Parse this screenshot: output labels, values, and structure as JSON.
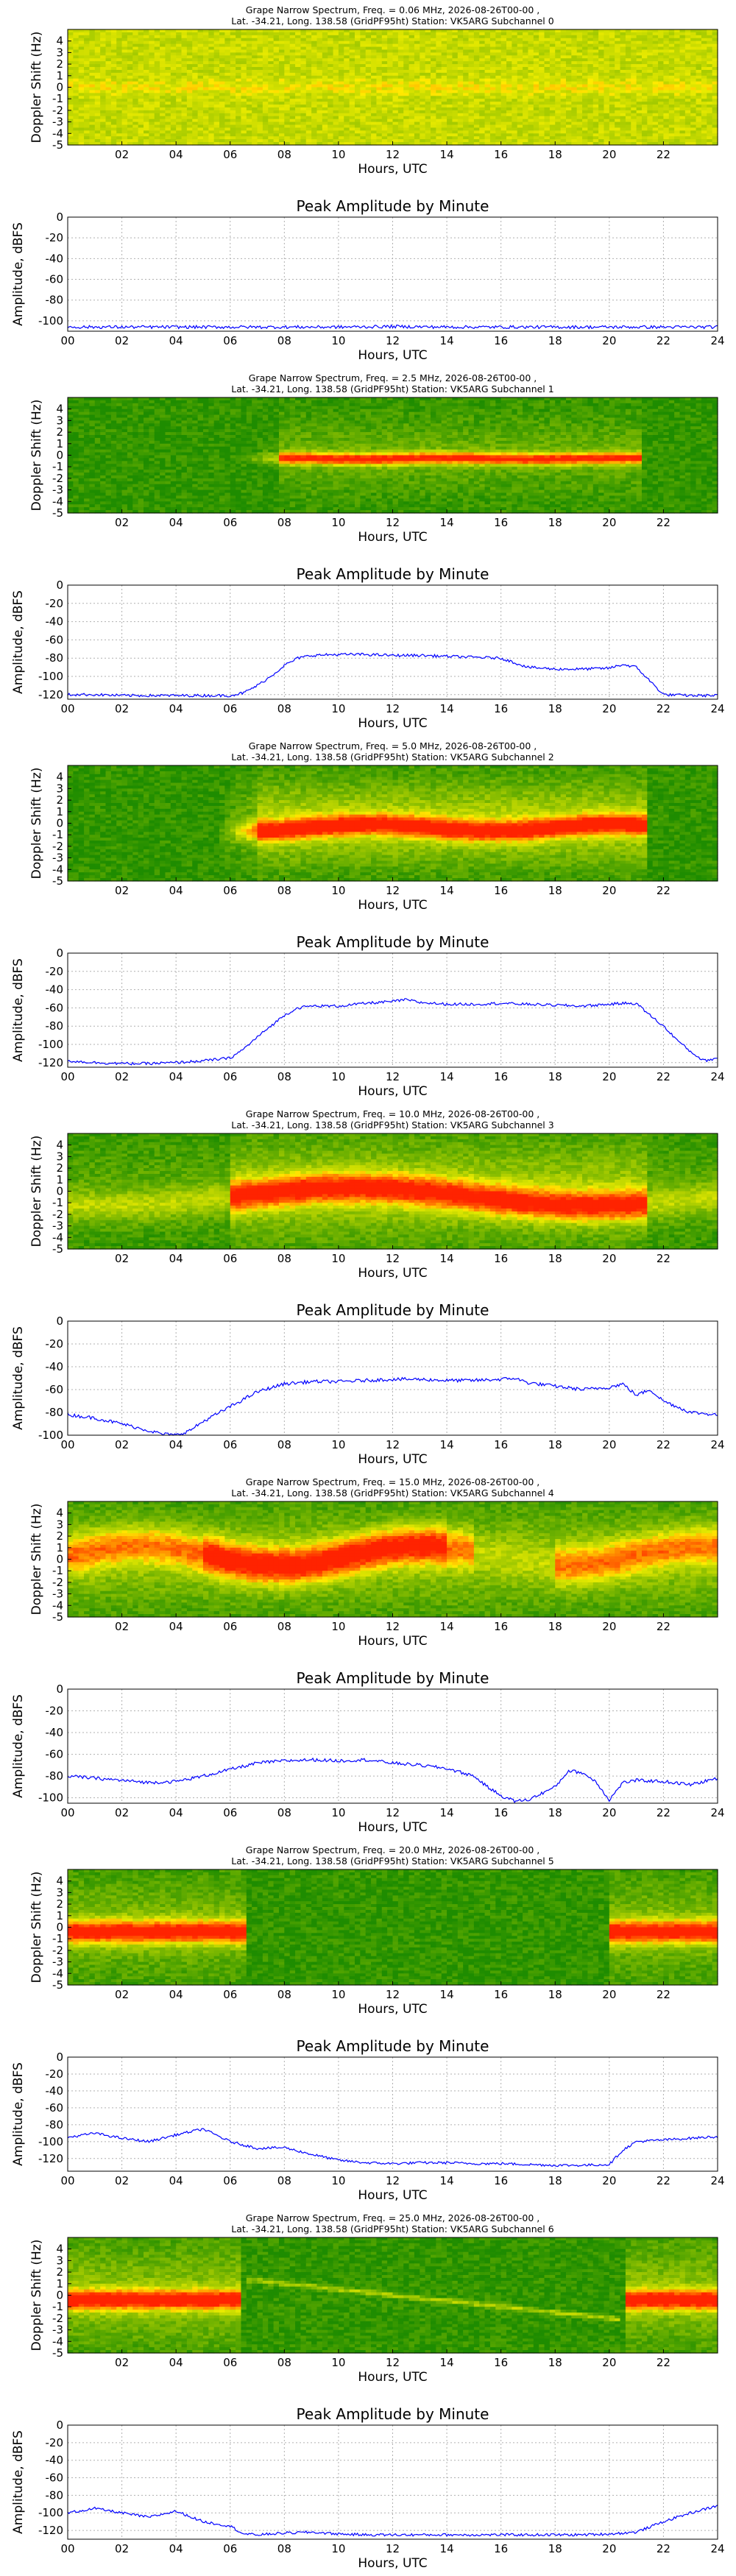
{
  "colors": {
    "line": "#0000ff",
    "grid": "#b0b0b0",
    "spectrogram_floor": "#1e8c00",
    "spectrogram_mid": "#e6e600",
    "spectrogram_peak": "#ff3300"
  },
  "chart_data": [
    {
      "type": "heatmap",
      "id": "spec-0",
      "title": "Grape Narrow Spectrum, Freq. = 0.06 MHz, 2026-08-26T00-00 ,",
      "subtitle": "Lat. -34.21, Long. 138.58 (GridPF95ht) Station: VK5ARG Subchannel 0",
      "xlabel": "Hours, UTC",
      "ylabel": "Doppler Shift (Hz)",
      "xlim": [
        0,
        24
      ],
      "ylim": [
        -5,
        5
      ],
      "xticks": [
        "02",
        "04",
        "06",
        "08",
        "10",
        "12",
        "14",
        "16",
        "18",
        "20",
        "22"
      ],
      "yticks": [
        "4",
        "3",
        "2",
        "1",
        "0",
        "-1",
        "-2",
        "-3",
        "-4",
        "-5"
      ],
      "colormap": "green-yellow-red",
      "note_texture": "uniform"
    },
    {
      "type": "line",
      "id": "amp-0",
      "title": "Peak Amplitude by Minute",
      "xlabel": "Hours, UTC",
      "ylabel": "Amplitude, dBFS",
      "xlim": [
        0,
        24
      ],
      "ylim": [
        -110,
        0
      ],
      "grid": true,
      "xticks": [
        "00",
        "02",
        "04",
        "06",
        "08",
        "10",
        "12",
        "14",
        "16",
        "18",
        "20",
        "22",
        "24"
      ],
      "yticks": [
        "0",
        "-20",
        "-40",
        "-60",
        "-80",
        "-100"
      ],
      "x": [
        0,
        2,
        4,
        6,
        8,
        10,
        12,
        14,
        16,
        18,
        20,
        22,
        24
      ],
      "series": [
        {
          "values": [
            -106,
            -106,
            -106,
            -106,
            -106,
            -106,
            -105.5,
            -106,
            -106,
            -106,
            -106,
            -106,
            -106
          ]
        }
      ]
    },
    {
      "type": "heatmap",
      "id": "spec-1",
      "title": "Grape Narrow Spectrum, Freq. = 2.5 MHz, 2026-08-26T00-00 ,",
      "subtitle": "Lat. -34.21, Long. 138.58 (GridPF95ht) Station: VK5ARG Subchannel 1",
      "xlabel": "Hours, UTC",
      "ylabel": "Doppler Shift (Hz)",
      "xlim": [
        0,
        24
      ],
      "ylim": [
        -5,
        5
      ],
      "xticks": [
        "02",
        "04",
        "06",
        "08",
        "10",
        "12",
        "14",
        "16",
        "18",
        "20",
        "22"
      ],
      "yticks": [
        "4",
        "3",
        "2",
        "1",
        "0",
        "-1",
        "-2",
        "-3",
        "-4",
        "-5"
      ],
      "colormap": "green-yellow-red"
    },
    {
      "type": "line",
      "id": "amp-1",
      "title": "Peak Amplitude by Minute",
      "xlabel": "Hours, UTC",
      "ylabel": "Amplitude, dBFS",
      "xlim": [
        0,
        24
      ],
      "ylim": [
        -125,
        0
      ],
      "grid": true,
      "xticks": [
        "00",
        "02",
        "04",
        "06",
        "08",
        "10",
        "12",
        "14",
        "16",
        "18",
        "20",
        "22",
        "24"
      ],
      "yticks": [
        "0",
        "-20",
        "-40",
        "-60",
        "-80",
        "-100",
        "-120"
      ],
      "x": [
        0,
        1,
        2,
        3,
        4,
        5,
        6,
        6.5,
        7,
        7.5,
        8,
        8.5,
        9,
        10,
        11,
        12,
        13,
        14,
        15,
        16,
        16.5,
        17,
        18,
        19,
        20,
        20.5,
        21,
        21.5,
        22,
        23,
        24
      ],
      "series": [
        {
          "values": [
            -120,
            -120,
            -121,
            -121,
            -121,
            -121,
            -121,
            -118,
            -110,
            -100,
            -88,
            -80,
            -77,
            -76,
            -76,
            -77,
            -77,
            -78,
            -79,
            -80,
            -85,
            -90,
            -92,
            -92,
            -91,
            -87,
            -90,
            -105,
            -120,
            -121,
            -121
          ]
        }
      ]
    },
    {
      "type": "heatmap",
      "id": "spec-2",
      "title": "Grape Narrow Spectrum, Freq. = 5.0 MHz, 2026-08-26T00-00 ,",
      "subtitle": "Lat. -34.21, Long. 138.58 (GridPF95ht) Station: VK5ARG Subchannel 2",
      "xlabel": "Hours, UTC",
      "ylabel": "Doppler Shift (Hz)",
      "xlim": [
        0,
        24
      ],
      "ylim": [
        -5,
        5
      ],
      "xticks": [
        "02",
        "04",
        "06",
        "08",
        "10",
        "12",
        "14",
        "16",
        "18",
        "20",
        "22"
      ],
      "yticks": [
        "4",
        "3",
        "2",
        "1",
        "0",
        "-1",
        "-2",
        "-3",
        "-4",
        "-5"
      ],
      "colormap": "green-yellow-red"
    },
    {
      "type": "line",
      "id": "amp-2",
      "title": "Peak Amplitude by Minute",
      "xlabel": "Hours, UTC",
      "ylabel": "Amplitude, dBFS",
      "xlim": [
        0,
        24
      ],
      "ylim": [
        -125,
        0
      ],
      "grid": true,
      "xticks": [
        "00",
        "02",
        "04",
        "06",
        "08",
        "10",
        "12",
        "14",
        "16",
        "18",
        "20",
        "22",
        "24"
      ],
      "yticks": [
        "0",
        "-20",
        "-40",
        "-60",
        "-80",
        "-100",
        "-120"
      ],
      "x": [
        0,
        1,
        2,
        3,
        4,
        5,
        6,
        6.5,
        7,
        7.5,
        8,
        8.5,
        9,
        10,
        11,
        12,
        12.5,
        13,
        14,
        15,
        16,
        17,
        18,
        19,
        20,
        20.5,
        21,
        21.5,
        22,
        22.5,
        23,
        23.5,
        24
      ],
      "series": [
        {
          "values": [
            -118,
            -120,
            -121,
            -121,
            -120,
            -118,
            -115,
            -105,
            -92,
            -80,
            -68,
            -60,
            -58,
            -58,
            -55,
            -53,
            -51,
            -54,
            -56,
            -56,
            -55,
            -56,
            -57,
            -58,
            -56,
            -55,
            -55,
            -68,
            -80,
            -95,
            -108,
            -118,
            -115
          ]
        }
      ]
    },
    {
      "type": "heatmap",
      "id": "spec-3",
      "title": "Grape Narrow Spectrum, Freq. = 10.0 MHz, 2026-08-26T00-00 ,",
      "subtitle": "Lat. -34.21, Long. 138.58 (GridPF95ht) Station: VK5ARG Subchannel 3",
      "xlabel": "Hours, UTC",
      "ylabel": "Doppler Shift (Hz)",
      "xlim": [
        0,
        24
      ],
      "ylim": [
        -5,
        5
      ],
      "xticks": [
        "02",
        "04",
        "06",
        "08",
        "10",
        "12",
        "14",
        "16",
        "18",
        "20",
        "22"
      ],
      "yticks": [
        "4",
        "3",
        "2",
        "1",
        "0",
        "-1",
        "-2",
        "-3",
        "-4",
        "-5"
      ],
      "colormap": "green-yellow-red"
    },
    {
      "type": "line",
      "id": "amp-3",
      "title": "Peak Amplitude by Minute",
      "xlabel": "Hours, UTC",
      "ylabel": "Amplitude, dBFS",
      "xlim": [
        0,
        24
      ],
      "ylim": [
        -100,
        0
      ],
      "grid": true,
      "xticks": [
        "00",
        "02",
        "04",
        "06",
        "08",
        "10",
        "12",
        "14",
        "16",
        "18",
        "20",
        "22",
        "24"
      ],
      "yticks": [
        "0",
        "-20",
        "-40",
        "-60",
        "-80",
        "-100"
      ],
      "x": [
        0,
        1,
        2,
        3,
        3.5,
        4,
        4.5,
        5,
        6,
        7,
        8,
        9,
        10,
        11,
        12,
        13,
        14,
        15,
        16,
        16.5,
        17,
        18,
        19,
        20,
        20.5,
        21,
        21.5,
        22,
        23,
        24
      ],
      "series": [
        {
          "values": [
            -82,
            -85,
            -90,
            -96,
            -99,
            -100,
            -96,
            -88,
            -75,
            -62,
            -55,
            -53,
            -53,
            -52,
            -51,
            -51,
            -52,
            -52,
            -51,
            -50,
            -54,
            -57,
            -60,
            -58,
            -55,
            -65,
            -60,
            -70,
            -80,
            -82
          ]
        }
      ]
    },
    {
      "type": "heatmap",
      "id": "spec-4",
      "title": "Grape Narrow Spectrum, Freq. = 15.0 MHz, 2026-08-26T00-00 ,",
      "subtitle": "Lat. -34.21, Long. 138.58 (GridPF95ht) Station: VK5ARG Subchannel 4",
      "xlabel": "Hours, UTC",
      "ylabel": "Doppler Shift (Hz)",
      "xlim": [
        0,
        24
      ],
      "ylim": [
        -5,
        5
      ],
      "xticks": [
        "02",
        "04",
        "06",
        "08",
        "10",
        "12",
        "14",
        "16",
        "18",
        "20",
        "22"
      ],
      "yticks": [
        "4",
        "3",
        "2",
        "1",
        "0",
        "-1",
        "-2",
        "-3",
        "-4",
        "-5"
      ],
      "colormap": "green-yellow-red"
    },
    {
      "type": "line",
      "id": "amp-4",
      "title": "Peak Amplitude by Minute",
      "xlabel": "Hours, UTC",
      "ylabel": "Amplitude, dBFS",
      "xlim": [
        0,
        24
      ],
      "ylim": [
        -105,
        0
      ],
      "grid": true,
      "xticks": [
        "00",
        "02",
        "04",
        "06",
        "08",
        "10",
        "12",
        "14",
        "16",
        "18",
        "20",
        "22",
        "24"
      ],
      "yticks": [
        "0",
        "-20",
        "-40",
        "-60",
        "-80",
        "-100"
      ],
      "x": [
        0,
        1,
        2,
        3,
        4,
        5,
        6,
        7,
        8,
        9,
        10,
        11,
        12,
        13,
        14,
        15,
        15.5,
        16,
        16.5,
        17,
        18,
        18.5,
        19,
        19.5,
        20,
        20.5,
        21,
        22,
        23,
        24
      ],
      "series": [
        {
          "values": [
            -80,
            -82,
            -84,
            -86,
            -85,
            -80,
            -74,
            -68,
            -66,
            -65,
            -66,
            -65,
            -68,
            -70,
            -73,
            -80,
            -90,
            -98,
            -103,
            -102,
            -90,
            -75,
            -77,
            -85,
            -102,
            -86,
            -84,
            -85,
            -88,
            -82
          ]
        }
      ]
    },
    {
      "type": "heatmap",
      "id": "spec-5",
      "title": "Grape Narrow Spectrum, Freq. = 20.0 MHz, 2026-08-26T00-00 ,",
      "subtitle": "Lat. -34.21, Long. 138.58 (GridPF95ht) Station: VK5ARG Subchannel 5",
      "xlabel": "Hours, UTC",
      "ylabel": "Doppler Shift (Hz)",
      "xlim": [
        0,
        24
      ],
      "ylim": [
        -5,
        5
      ],
      "xticks": [
        "02",
        "04",
        "06",
        "08",
        "10",
        "12",
        "14",
        "16",
        "18",
        "20",
        "22"
      ],
      "yticks": [
        "4",
        "3",
        "2",
        "1",
        "0",
        "-1",
        "-2",
        "-3",
        "-4",
        "-5"
      ],
      "colormap": "green-yellow-red"
    },
    {
      "type": "line",
      "id": "amp-5",
      "title": "Peak Amplitude by Minute",
      "xlabel": "Hours, UTC",
      "ylabel": "Amplitude, dBFS",
      "xlim": [
        0,
        24
      ],
      "ylim": [
        -135,
        0
      ],
      "grid": true,
      "xticks": [
        "00",
        "02",
        "04",
        "06",
        "08",
        "10",
        "12",
        "14",
        "16",
        "18",
        "20",
        "22",
        "24"
      ],
      "yticks": [
        "0",
        "-20",
        "-40",
        "-60",
        "-80",
        "-100",
        "-120"
      ],
      "x": [
        0,
        1,
        2,
        3,
        4,
        5,
        6,
        7,
        8,
        9,
        10,
        11,
        12,
        13,
        14,
        15,
        16,
        17,
        18,
        19,
        20,
        20.5,
        21,
        22,
        23,
        24
      ],
      "series": [
        {
          "values": [
            -95,
            -90,
            -96,
            -100,
            -92,
            -85,
            -100,
            -108,
            -107,
            -115,
            -122,
            -125,
            -126,
            -125,
            -125,
            -126,
            -126,
            -127,
            -128,
            -128,
            -127,
            -110,
            -100,
            -98,
            -96,
            -94
          ]
        }
      ]
    },
    {
      "type": "heatmap",
      "id": "spec-6",
      "title": "Grape Narrow Spectrum, Freq. = 25.0 MHz, 2026-08-26T00-00 ,",
      "subtitle": "Lat. -34.21, Long. 138.58 (GridPF95ht) Station: VK5ARG Subchannel 6",
      "xlabel": "Hours, UTC",
      "ylabel": "Doppler Shift (Hz)",
      "xlim": [
        0,
        24
      ],
      "ylim": [
        -5,
        5
      ],
      "xticks": [
        "02",
        "04",
        "06",
        "08",
        "10",
        "12",
        "14",
        "16",
        "18",
        "20",
        "22"
      ],
      "yticks": [
        "4",
        "3",
        "2",
        "1",
        "0",
        "-1",
        "-2",
        "-3",
        "-4",
        "-5"
      ],
      "colormap": "green-yellow-red"
    },
    {
      "type": "line",
      "id": "amp-6",
      "title": "Peak Amplitude by Minute",
      "xlabel": "Hours, UTC",
      "ylabel": "Amplitude, dBFS",
      "xlim": [
        0,
        24
      ],
      "ylim": [
        -130,
        0
      ],
      "grid": true,
      "xticks": [
        "00",
        "02",
        "04",
        "06",
        "08",
        "10",
        "12",
        "14",
        "16",
        "18",
        "20",
        "22",
        "24"
      ],
      "yticks": [
        "0",
        "-20",
        "-40",
        "-60",
        "-80",
        "-100",
        "-120"
      ],
      "x": [
        0,
        1,
        2,
        3,
        4,
        5,
        6,
        6.5,
        7,
        8,
        9,
        10,
        11,
        12,
        13,
        14,
        15,
        16,
        17,
        18,
        19,
        20,
        21,
        22,
        23,
        24
      ],
      "series": [
        {
          "values": [
            -100,
            -95,
            -100,
            -105,
            -98,
            -110,
            -115,
            -124,
            -125,
            -123,
            -122,
            -124,
            -125,
            -125,
            -125,
            -125,
            -125,
            -125,
            -125,
            -125,
            -125,
            -124,
            -122,
            -110,
            -100,
            -92
          ]
        }
      ]
    }
  ]
}
